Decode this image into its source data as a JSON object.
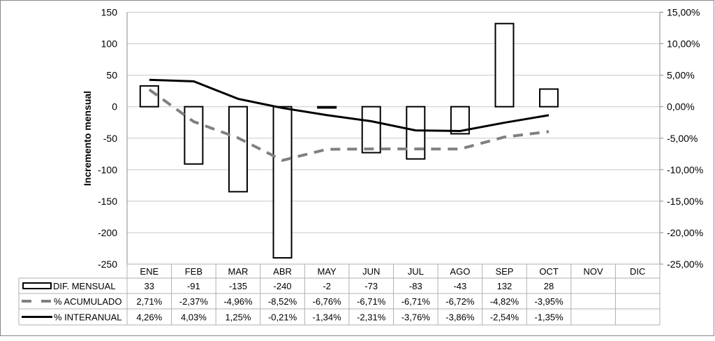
{
  "chart_data": {
    "type": "bar",
    "title": "",
    "ylabel": "Incremento mensual",
    "ylim": [
      -250,
      150
    ],
    "y_ticks": [
      "150",
      "100",
      "50",
      "0",
      "-50",
      "-100",
      "-150",
      "-200",
      "-250"
    ],
    "y2lim": [
      -25,
      15
    ],
    "y2_ticks": [
      "15,00%",
      "10,00%",
      "5,00%",
      "0,00%",
      "-5,00%",
      "-10,00%",
      "-15,00%",
      "-20,00%",
      "-25,00%"
    ],
    "grid": true,
    "legend": "data-table",
    "categories": [
      "ENE",
      "FEB",
      "MAR",
      "ABR",
      "MAY",
      "JUN",
      "JUL",
      "AGO",
      "SEP",
      "OCT",
      "NOV",
      "DIC"
    ],
    "series": [
      {
        "name": "DIF. MENSUAL",
        "type": "bar",
        "axis": "left",
        "values": [
          33,
          -91,
          -135,
          -240,
          -2,
          -73,
          -83,
          -43,
          132,
          28,
          null,
          null
        ],
        "labels": [
          "33",
          "-91",
          "-135",
          "-240",
          "-2",
          "-73",
          "-83",
          "-43",
          "132",
          "28",
          "",
          ""
        ]
      },
      {
        "name": "% ACUMULADO",
        "type": "line-dashed",
        "axis": "right",
        "color": "#808080",
        "values": [
          2.71,
          -2.37,
          -4.96,
          -8.52,
          -6.76,
          -6.71,
          -6.71,
          -6.72,
          -4.82,
          -3.95,
          null,
          null
        ],
        "labels": [
          "2,71%",
          "-2,37%",
          "-4,96%",
          "-8,52%",
          "-6,76%",
          "-6,71%",
          "-6,71%",
          "-6,72%",
          "-4,82%",
          "-3,95%",
          "",
          ""
        ]
      },
      {
        "name": "% INTERANUAL",
        "type": "line",
        "axis": "right",
        "color": "#000000",
        "values": [
          4.26,
          4.03,
          1.25,
          -0.21,
          -1.34,
          -2.31,
          -3.76,
          -3.86,
          -2.54,
          -1.35,
          null,
          null
        ],
        "labels": [
          "4,26%",
          "4,03%",
          "1,25%",
          "-0,21%",
          "-1,34%",
          "-2,31%",
          "-3,76%",
          "-3,86%",
          "-2,54%",
          "-1,35%",
          "",
          ""
        ]
      }
    ]
  }
}
